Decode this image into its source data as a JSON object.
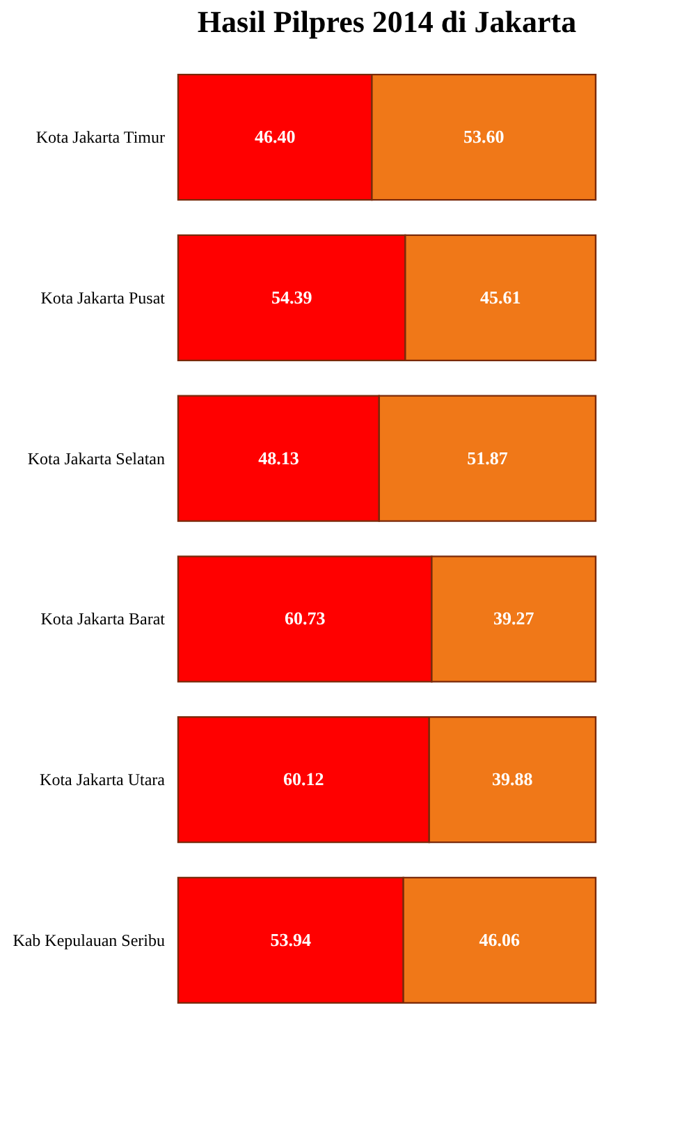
{
  "chart_data": {
    "type": "bar",
    "title": "Hasil Pilpres 2014 di Jakarta",
    "orientation": "horizontal",
    "stacked": true,
    "tick_labels": "y",
    "xlim": [
      0,
      100
    ],
    "categories": [
      "Kota Jakarta  Timur",
      "Kota Jakarta  Pusat",
      "Kota Jakarta  Selatan",
      "Kota Jakarta  Barat",
      "Kota Jakarta  Utara",
      "Kab Kepulauan  Seribu"
    ],
    "series": [
      {
        "color": "#ff0000",
        "values": [
          46.4,
          54.39,
          48.13,
          60.73,
          60.12,
          53.94
        ],
        "value_labels": [
          "46.40",
          "54.39",
          "48.13",
          "60.73",
          "60.12",
          "53.94"
        ]
      },
      {
        "color": "#f07818",
        "values": [
          53.6,
          45.61,
          51.87,
          39.27,
          39.88,
          46.06
        ],
        "value_labels": [
          "53.60",
          "45.61",
          "51.87",
          "39.27",
          "39.88",
          "46.06"
        ]
      }
    ]
  }
}
